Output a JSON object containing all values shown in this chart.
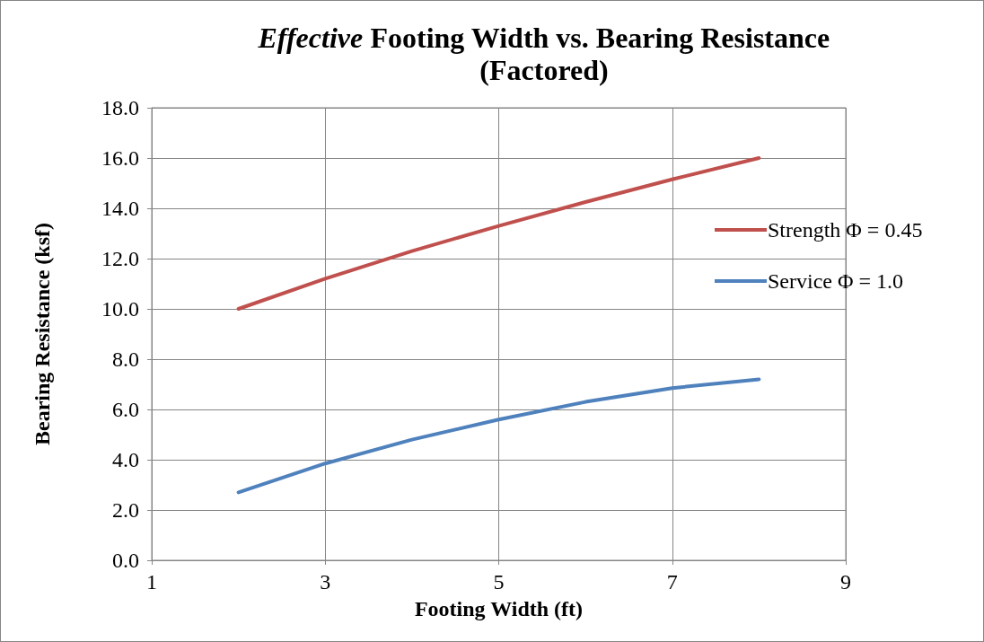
{
  "chart_data": {
    "type": "line",
    "title": "Effective Footing Width vs. Bearing Resistance\n(Factored)",
    "xlabel": "Footing Width (ft)",
    "ylabel": "Bearing Resistance (ksf)",
    "x": [
      2,
      3,
      4,
      5,
      6,
      7,
      8
    ],
    "series": [
      {
        "name": "Strength Φ = 0.45",
        "color": "#c0504d",
        "values": [
          10.0,
          11.2,
          12.3,
          13.3,
          14.25,
          15.15,
          16.0
        ]
      },
      {
        "name": "Service Φ = 1.0",
        "color": "#4f81bd",
        "values": [
          2.7,
          3.85,
          4.8,
          5.6,
          6.3,
          6.85,
          7.2
        ]
      }
    ],
    "xlim": [
      1,
      9
    ],
    "xticks": [
      1,
      3,
      5,
      7,
      9
    ],
    "ylim": [
      0,
      18
    ],
    "yticks": [
      {
        "value": 0,
        "label": "0.0"
      },
      {
        "value": 2,
        "label": "2.0"
      },
      {
        "value": 4,
        "label": "4.0"
      },
      {
        "value": 6,
        "label": "6.0"
      },
      {
        "value": 8,
        "label": "8.0"
      },
      {
        "value": 10,
        "label": "10.0"
      },
      {
        "value": 12,
        "label": "12.0"
      },
      {
        "value": 14,
        "label": "14.0"
      },
      {
        "value": 16,
        "label": "16.0"
      },
      {
        "value": 18,
        "label": "18.0"
      }
    ],
    "grid": true,
    "legend": "right",
    "marker": "none",
    "line_style": "solid"
  }
}
